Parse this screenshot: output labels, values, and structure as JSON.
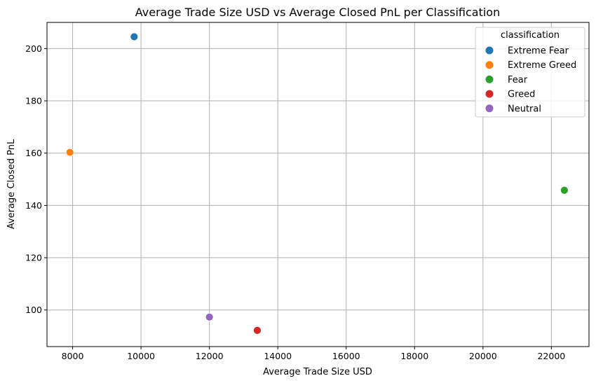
{
  "chart_data": {
    "type": "scatter",
    "title": "Average Trade Size USD vs Average Closed PnL per Classification",
    "xlabel": "Average Trade Size USD",
    "ylabel": "Average Closed PnL",
    "xlim": [
      7250,
      23100
    ],
    "ylim": [
      86,
      210
    ],
    "xticks": [
      8000,
      10000,
      12000,
      14000,
      16000,
      18000,
      20000,
      22000
    ],
    "yticks": [
      100,
      120,
      140,
      160,
      180,
      200
    ],
    "grid": true,
    "legend": {
      "title": "classification",
      "placement": "top-right"
    },
    "series": [
      {
        "name": "Extreme Fear",
        "color": "#1f77b4",
        "x": 9800,
        "y": 204.5
      },
      {
        "name": "Extreme Greed",
        "color": "#ff7f0e",
        "x": 7920,
        "y": 160.3
      },
      {
        "name": "Fear",
        "color": "#2ca02c",
        "x": 22380,
        "y": 145.8
      },
      {
        "name": "Greed",
        "color": "#d62728",
        "x": 13400,
        "y": 92.2
      },
      {
        "name": "Neutral",
        "color": "#9467bd",
        "x": 12000,
        "y": 97.3
      }
    ]
  }
}
